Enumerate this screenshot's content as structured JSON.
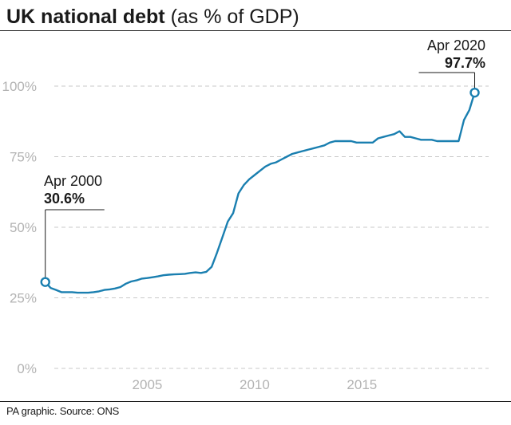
{
  "header": {
    "title_bold": "UK national debt",
    "title_regular": "(as % of GDP)"
  },
  "footer": {
    "source": "PA graphic. Source: ONS"
  },
  "chart_data": {
    "type": "line",
    "title": "UK national debt (as % of GDP)",
    "x_ticks": [
      "2005",
      "2010",
      "2015"
    ],
    "y_ticks": [
      "0%",
      "25%",
      "50%",
      "75%",
      "100%"
    ],
    "ylim": [
      0,
      100
    ],
    "xlim": [
      "2000-01",
      "2020-12"
    ],
    "grid": "horizontal dashed",
    "line_color": "#1a7fb0",
    "annotations": [
      {
        "date_label": "Apr 2000",
        "value_label": "30.6%",
        "x": 2000.25,
        "y": 30.6
      },
      {
        "date_label": "Apr 2020",
        "value_label": "97.7%",
        "x": 2020.25,
        "y": 97.7
      }
    ],
    "series": [
      {
        "x": [
          2000.25,
          2000.5,
          2000.75,
          2001.0,
          2001.25,
          2001.5,
          2001.75,
          2002.0,
          2002.25,
          2002.5,
          2002.75,
          2003.0,
          2003.25,
          2003.5,
          2003.75,
          2004.0,
          2004.25,
          2004.5,
          2004.75,
          2005.0,
          2005.25,
          2005.5,
          2005.75,
          2006.0,
          2006.25,
          2006.5,
          2006.75,
          2007.0,
          2007.25,
          2007.5,
          2007.75,
          2008.0,
          2008.25,
          2008.5,
          2008.75,
          2009.0,
          2009.25,
          2009.5,
          2009.75,
          2010.0,
          2010.25,
          2010.5,
          2010.75,
          2011.0,
          2011.25,
          2011.5,
          2011.75,
          2012.0,
          2012.25,
          2012.5,
          2012.75,
          2013.0,
          2013.25,
          2013.5,
          2013.75,
          2014.0,
          2014.25,
          2014.5,
          2014.75,
          2015.0,
          2015.25,
          2015.5,
          2015.75,
          2016.0,
          2016.25,
          2016.5,
          2016.75,
          2017.0,
          2017.25,
          2017.5,
          2017.75,
          2018.0,
          2018.25,
          2018.5,
          2018.75,
          2019.0,
          2019.25,
          2019.5,
          2019.75,
          2020.0,
          2020.25
        ],
        "y": [
          30.6,
          28.5,
          27.8,
          27.0,
          27.0,
          27.0,
          26.8,
          26.8,
          26.8,
          27.0,
          27.3,
          27.8,
          28.0,
          28.3,
          28.8,
          30.0,
          30.8,
          31.2,
          31.8,
          32.0,
          32.3,
          32.6,
          33.0,
          33.2,
          33.3,
          33.4,
          33.5,
          33.8,
          34.0,
          33.8,
          34.2,
          36.0,
          41.0,
          46.5,
          52.0,
          55.0,
          62.0,
          65.0,
          67.0,
          68.5,
          70.0,
          71.5,
          72.5,
          73.0,
          74.0,
          75.0,
          76.0,
          76.5,
          77.0,
          77.5,
          78.0,
          78.5,
          79.0,
          80.0,
          80.5,
          80.5,
          80.5,
          80.5,
          80.0,
          80.0,
          80.0,
          80.0,
          81.5,
          82.0,
          82.5,
          83.0,
          84.0,
          82.0,
          82.0,
          81.5,
          81.0,
          81.0,
          81.0,
          80.5,
          80.5,
          80.5,
          80.5,
          80.5,
          88.0,
          91.5,
          97.7
        ]
      }
    ]
  }
}
